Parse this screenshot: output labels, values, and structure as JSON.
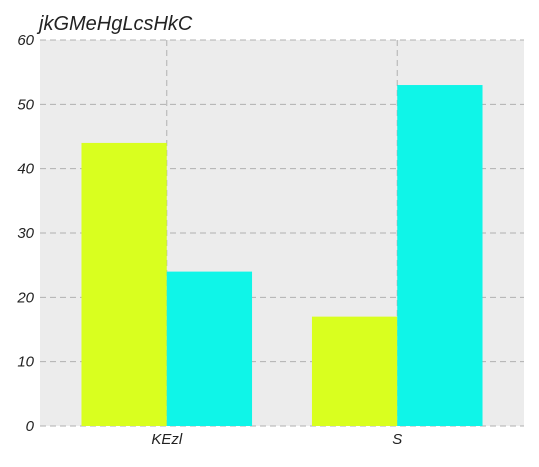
{
  "chart_data": {
    "type": "bar",
    "title": "jkGMeHgLcsHkC",
    "xlabel": "",
    "ylabel": "",
    "categories": [
      "KEzl",
      "S"
    ],
    "series": [
      {
        "values": [
          44,
          17
        ],
        "color": "#d9ff1f"
      },
      {
        "values": [
          24,
          53
        ],
        "color": "#0ff5e8"
      }
    ],
    "ylim": [
      0,
      60
    ],
    "yticks": [
      "0",
      "10",
      "20",
      "30",
      "40",
      "50",
      "60"
    ],
    "grid": true,
    "background": "#ececec"
  }
}
